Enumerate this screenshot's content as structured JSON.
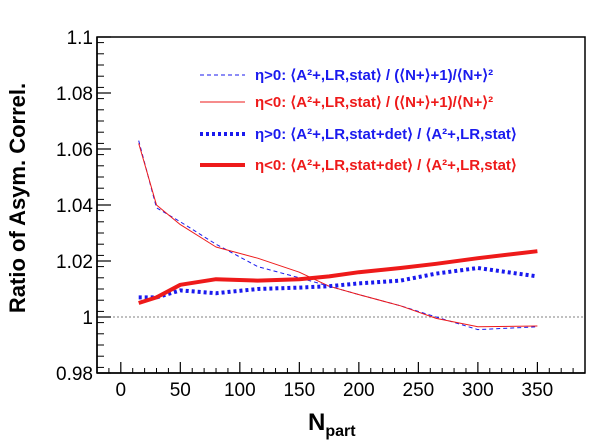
{
  "chart_data": {
    "type": "line",
    "xlabel": "N",
    "xlabel_sub": "part",
    "ylabel": "Ratio of Asym. Correl.",
    "xlim": [
      -20,
      390
    ],
    "ylim": [
      0.98,
      1.1
    ],
    "x_ticks": [
      0,
      50,
      100,
      150,
      200,
      250,
      300,
      350
    ],
    "x_tick_labels": [
      "0",
      "50",
      "100",
      "150",
      "200",
      "250",
      "300",
      "350"
    ],
    "y_ticks": [
      0.98,
      1,
      1.02,
      1.04,
      1.06,
      1.08,
      1.1
    ],
    "y_tick_labels": [
      "0.98",
      "1",
      "1.02",
      "1.04",
      "1.06",
      "1.08",
      "1.1"
    ],
    "reference_line": 1,
    "legend_position": "top-right",
    "colors": {
      "blue": "#1a1aee",
      "red": "#ee1a1a",
      "ref": "#808080"
    },
    "series": [
      {
        "name": "η>0: ⟨A²+,LR,stat⟩ / (⟨N+⟩+1)/⟨N+⟩²",
        "color": "#1a1aee",
        "style": "dashed",
        "width": 1,
        "x": [
          15,
          30,
          50,
          80,
          115,
          150,
          175,
          200,
          235,
          265,
          300,
          350
        ],
        "y": [
          1.063,
          1.039,
          1.034,
          1.026,
          1.018,
          1.014,
          1.011,
          1.008,
          1.004,
          1.0,
          0.9955,
          0.9965
        ]
      },
      {
        "name": "η<0: ⟨A²+,LR,stat⟩ / (⟨N+⟩+1)/⟨N+⟩²",
        "color": "#ee1a1a",
        "style": "solid",
        "width": 1,
        "x": [
          15,
          30,
          50,
          80,
          115,
          150,
          175,
          200,
          235,
          265,
          300,
          350
        ],
        "y": [
          1.062,
          1.04,
          1.033,
          1.025,
          1.021,
          1.016,
          1.011,
          1.008,
          1.004,
          0.9995,
          0.9965,
          0.9968
        ]
      },
      {
        "name": "η>0: ⟨A²+,LR,stat+det⟩ / ⟨A²+,LR,stat⟩",
        "color": "#1a1aee",
        "style": "dotted",
        "width": 4,
        "x": [
          15,
          30,
          50,
          80,
          115,
          150,
          175,
          200,
          235,
          265,
          300,
          350
        ],
        "y": [
          1.007,
          1.007,
          1.0095,
          1.0085,
          1.01,
          1.0105,
          1.011,
          1.012,
          1.013,
          1.0155,
          1.0175,
          1.0145
        ]
      },
      {
        "name": "η<0: ⟨A²+,LR,stat+det⟩ / ⟨A²+,LR,stat⟩",
        "color": "#ee1a1a",
        "style": "solid",
        "width": 4,
        "x": [
          15,
          30,
          50,
          80,
          115,
          150,
          175,
          200,
          235,
          265,
          300,
          350
        ],
        "y": [
          1.005,
          1.007,
          1.0115,
          1.0135,
          1.013,
          1.0135,
          1.0145,
          1.016,
          1.0175,
          1.019,
          1.021,
          1.0235
        ]
      }
    ]
  }
}
